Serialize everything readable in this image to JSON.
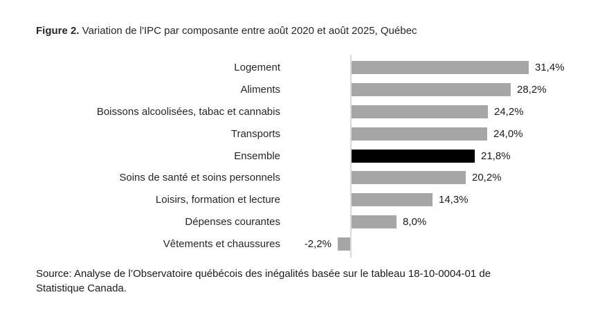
{
  "title": {
    "prefix": "Figure 2.",
    "text": " Variation de l'IPC par composante entre août 2020 et août 2025, Québec"
  },
  "chart_data": {
    "type": "bar",
    "orientation": "horizontal",
    "title": "Figure 2. Variation de l'IPC par composante entre août 2020 et août 2025, Québec",
    "categories": [
      "Logement",
      "Aliments",
      "Boissons alcoolisées, tabac et cannabis",
      "Transports",
      "Ensemble",
      "Soins de santé et soins personnels",
      "Loisirs, formation et lecture",
      "Dépenses courantes",
      "Vêtements et chaussures"
    ],
    "values": [
      31.4,
      28.2,
      24.2,
      24.0,
      21.8,
      20.2,
      14.3,
      8.0,
      -2.2
    ],
    "value_labels": [
      "31,4%",
      "28,2%",
      "24,2%",
      "24,0%",
      "21,8%",
      "20,2%",
      "14,3%",
      "8,0%",
      "-2,2%"
    ],
    "highlight_category": "Ensemble",
    "colors": {
      "bar": "#a6a6a6",
      "highlight": "#000000",
      "axis": "#d9d9d9"
    },
    "xlim": [
      -2.2,
      31.4
    ],
    "grid": false,
    "legend": false,
    "value_label_position": "end"
  },
  "source": {
    "line1": "Source: Analyse de l’Observatoire québécois des inégalités basée sur le tableau 18-10-0004-01 de",
    "line2": "Statistique Canada."
  }
}
